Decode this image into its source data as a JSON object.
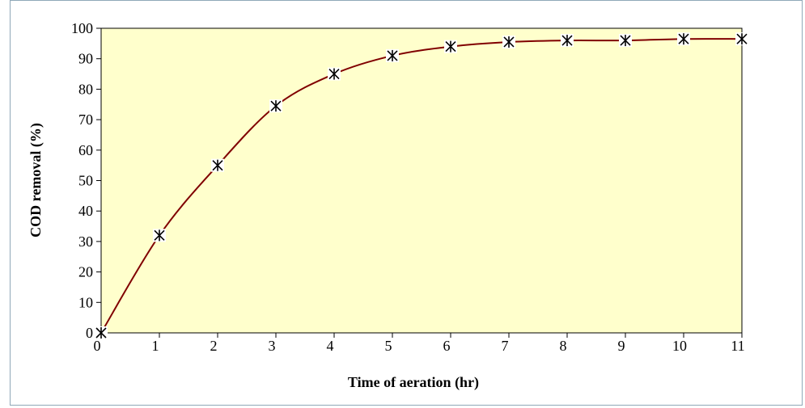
{
  "chart_data": {
    "type": "line",
    "title": "",
    "xlabel": "Time of aeration (hr)",
    "ylabel": "COD removal (%)",
    "xlim": [
      0,
      11
    ],
    "ylim": [
      0,
      100
    ],
    "x_ticks": [
      0,
      1,
      2,
      3,
      4,
      5,
      6,
      7,
      8,
      9,
      10,
      11
    ],
    "y_ticks": [
      0,
      10,
      20,
      30,
      40,
      50,
      60,
      70,
      80,
      90,
      100
    ],
    "grid": false,
    "series": [
      {
        "x": [
          0,
          1,
          2,
          3,
          4,
          5,
          6,
          7,
          8,
          9,
          10,
          11
        ],
        "y": [
          0,
          32,
          55,
          74.5,
          85,
          91,
          94,
          95.5,
          96,
          96,
          96.5,
          96.5
        ],
        "color": "#800000",
        "marker": "asterisk"
      }
    ],
    "colors": {
      "plot_background": "#ffffcc",
      "line": "#800000",
      "marker": "#000000",
      "frame_border": "#8fa8b8"
    }
  }
}
